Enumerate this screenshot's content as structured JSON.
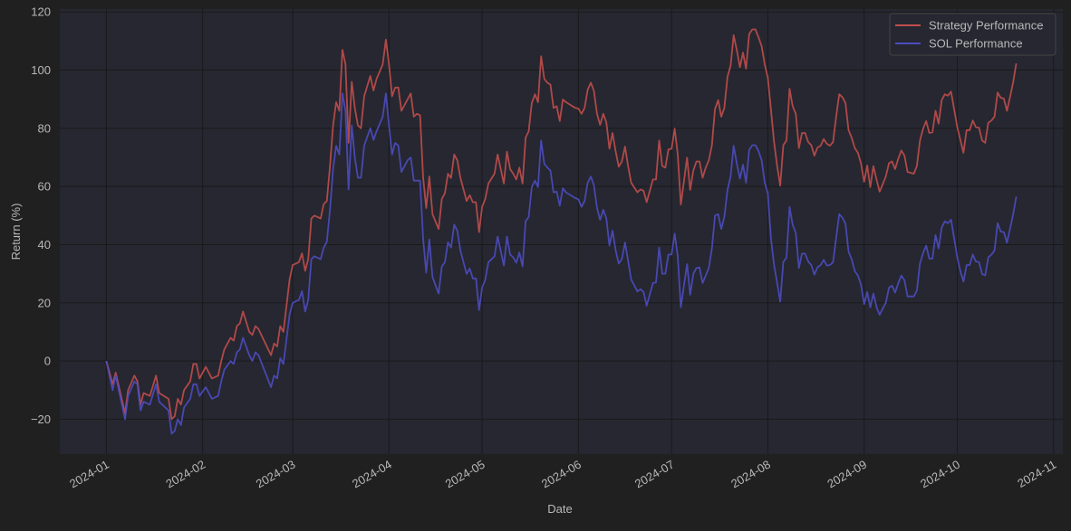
{
  "chart_data": {
    "type": "line",
    "title": "",
    "xlabel": "Date",
    "ylabel": "Return (%)",
    "xlim": [
      "2023-12-17",
      "2024-11-04"
    ],
    "ylim": [
      -32,
      121
    ],
    "grid": true,
    "legend_position": "top-right",
    "y_ticks": [
      -20,
      0,
      20,
      40,
      60,
      80,
      100,
      120
    ],
    "x_ticks": [
      "2024-01",
      "2024-02",
      "2024-03",
      "2024-04",
      "2024-05",
      "2024-06",
      "2024-07",
      "2024-08",
      "2024-09",
      "2024-10",
      "2024-11"
    ],
    "colors": {
      "background": "#202020",
      "plot_background": "#262730",
      "grid": "#1a1a1c"
    },
    "x": [
      "2024-01-01",
      "2024-01-03",
      "2024-01-04",
      "2024-01-07",
      "2024-01-08",
      "2024-01-10",
      "2024-01-11",
      "2024-01-12",
      "2024-01-13",
      "2024-01-15",
      "2024-01-17",
      "2024-01-18",
      "2024-01-21",
      "2024-01-22",
      "2024-01-23",
      "2024-01-24",
      "2024-01-25",
      "2024-01-26",
      "2024-01-28",
      "2024-01-29",
      "2024-01-30",
      "2024-01-31",
      "2024-02-02",
      "2024-02-04",
      "2024-02-06",
      "2024-02-07",
      "2024-02-08",
      "2024-02-10",
      "2024-02-11",
      "2024-02-12",
      "2024-02-13",
      "2024-02-14",
      "2024-02-16",
      "2024-02-17",
      "2024-02-18",
      "2024-02-19",
      "2024-02-23",
      "2024-02-24",
      "2024-02-25",
      "2024-02-26",
      "2024-02-27",
      "2024-02-29",
      "2024-03-01",
      "2024-03-03",
      "2024-03-04",
      "2024-03-05",
      "2024-03-06",
      "2024-03-07",
      "2024-03-08",
      "2024-03-10",
      "2024-03-11",
      "2024-03-12",
      "2024-03-13",
      "2024-03-14",
      "2024-03-15",
      "2024-03-16",
      "2024-03-17",
      "2024-03-18",
      "2024-03-19",
      "2024-03-20",
      "2024-03-21",
      "2024-03-22",
      "2024-03-23",
      "2024-03-24",
      "2024-03-26",
      "2024-03-27",
      "2024-03-28",
      "2024-03-30",
      "2024-03-31",
      "2024-04-01",
      "2024-04-02",
      "2024-04-03",
      "2024-04-04",
      "2024-04-05",
      "2024-04-07",
      "2024-04-08",
      "2024-04-09",
      "2024-04-10",
      "2024-04-11",
      "2024-04-12",
      "2024-04-13",
      "2024-04-14",
      "2024-04-15",
      "2024-04-17",
      "2024-04-18",
      "2024-04-19",
      "2024-04-20",
      "2024-04-21",
      "2024-04-22",
      "2024-04-23",
      "2024-04-24",
      "2024-04-26",
      "2024-04-27",
      "2024-04-28",
      "2024-04-29",
      "2024-04-30",
      "2024-05-01",
      "2024-05-02",
      "2024-05-03",
      "2024-05-05",
      "2024-05-06",
      "2024-05-08",
      "2024-05-09",
      "2024-05-10",
      "2024-05-11",
      "2024-05-12",
      "2024-05-13",
      "2024-05-14",
      "2024-05-15",
      "2024-05-16",
      "2024-05-17",
      "2024-05-18",
      "2024-05-19",
      "2024-05-20",
      "2024-05-21",
      "2024-05-22",
      "2024-05-23",
      "2024-05-24",
      "2024-05-25",
      "2024-05-26",
      "2024-05-27",
      "2024-05-28",
      "2024-05-31",
      "2024-06-01",
      "2024-06-02",
      "2024-06-03",
      "2024-06-04",
      "2024-06-05",
      "2024-06-06",
      "2024-06-07",
      "2024-06-08",
      "2024-06-09",
      "2024-06-10",
      "2024-06-11",
      "2024-06-12",
      "2024-06-13",
      "2024-06-14",
      "2024-06-15",
      "2024-06-16",
      "2024-06-17",
      "2024-06-18",
      "2024-06-20",
      "2024-06-21",
      "2024-06-22",
      "2024-06-23",
      "2024-06-25",
      "2024-06-26",
      "2024-06-27",
      "2024-06-28",
      "2024-06-29",
      "2024-06-30",
      "2024-07-01",
      "2024-07-02",
      "2024-07-03",
      "2024-07-04",
      "2024-07-06",
      "2024-07-07",
      "2024-07-08",
      "2024-07-09",
      "2024-07-10",
      "2024-07-11",
      "2024-07-12",
      "2024-07-13",
      "2024-07-14",
      "2024-07-15",
      "2024-07-16",
      "2024-07-17",
      "2024-07-18",
      "2024-07-19",
      "2024-07-20",
      "2024-07-21",
      "2024-07-22",
      "2024-07-23",
      "2024-07-24",
      "2024-07-25",
      "2024-07-26",
      "2024-07-27",
      "2024-07-28",
      "2024-07-29",
      "2024-07-30",
      "2024-07-31",
      "2024-08-01",
      "2024-08-02",
      "2024-08-03",
      "2024-08-04",
      "2024-08-05",
      "2024-08-06",
      "2024-08-07",
      "2024-08-08",
      "2024-08-09",
      "2024-08-10",
      "2024-08-11",
      "2024-08-12",
      "2024-08-13",
      "2024-08-14",
      "2024-08-15",
      "2024-08-16",
      "2024-08-17",
      "2024-08-18",
      "2024-08-19",
      "2024-08-20",
      "2024-08-21",
      "2024-08-22",
      "2024-08-23",
      "2024-08-24",
      "2024-08-25",
      "2024-08-26",
      "2024-08-27",
      "2024-08-28",
      "2024-08-29",
      "2024-08-30",
      "2024-08-31",
      "2024-09-01",
      "2024-09-02",
      "2024-09-03",
      "2024-09-04",
      "2024-09-05",
      "2024-09-06",
      "2024-09-07",
      "2024-09-08",
      "2024-09-09",
      "2024-09-10",
      "2024-09-11",
      "2024-09-12",
      "2024-09-13",
      "2024-09-14",
      "2024-09-15",
      "2024-09-17",
      "2024-09-18",
      "2024-09-19",
      "2024-09-20",
      "2024-09-21",
      "2024-09-22",
      "2024-09-23",
      "2024-09-24",
      "2024-09-25",
      "2024-09-26",
      "2024-09-27",
      "2024-09-28",
      "2024-09-29",
      "2024-09-30",
      "2024-10-01",
      "2024-10-02",
      "2024-10-03",
      "2024-10-04",
      "2024-10-05",
      "2024-10-06",
      "2024-10-07",
      "2024-10-08",
      "2024-10-09",
      "2024-10-10",
      "2024-10-11",
      "2024-10-12",
      "2024-10-13",
      "2024-10-14",
      "2024-10-15",
      "2024-10-16",
      "2024-10-17",
      "2024-10-18",
      "2024-10-19",
      "2024-10-20"
    ],
    "series": [
      {
        "name": "Strategy Performance",
        "color": "#c04e4c",
        "values": [
          0,
          -8,
          -4,
          -18,
          -10,
          -5,
          -7,
          -15,
          -11,
          -12,
          -5,
          -11,
          -13,
          -20,
          -19,
          -13,
          -15,
          -10,
          -7,
          -1,
          -1,
          -6,
          -2,
          -6,
          -5,
          0,
          4,
          8,
          7,
          12,
          13,
          17,
          10,
          9,
          12,
          11,
          2,
          6,
          5,
          12,
          10,
          28,
          33,
          34,
          37,
          31,
          35,
          49,
          50,
          49,
          54,
          55,
          67,
          81,
          89,
          86,
          107,
          102,
          75,
          96,
          87,
          81,
          80,
          91,
          98,
          93,
          97,
          102,
          110.5,
          102,
          91,
          94,
          94,
          86,
          90,
          92,
          84,
          85,
          84.5,
          63,
          52.6,
          63.4,
          50.5,
          45.4,
          55.7,
          57.7,
          64.4,
          62.9,
          71,
          69,
          63,
          55,
          57,
          54.6,
          54.6,
          44.3,
          53,
          55.7,
          61,
          64.4,
          71,
          61,
          72,
          66,
          64.4,
          62.4,
          66.5,
          61,
          76.8,
          79,
          88.7,
          91.7,
          89,
          104.8,
          97,
          95.7,
          95,
          87,
          87.6,
          82.5,
          89.9,
          89,
          87,
          86.8,
          85,
          87,
          93.3,
          95.7,
          92.8,
          85,
          81.2,
          85,
          82,
          73,
          78.4,
          72,
          66.8,
          68.6,
          73.7,
          67,
          61.3,
          58,
          59,
          58.5,
          54.6,
          62.4,
          62.4,
          75.8,
          67,
          66.5,
          72.7,
          73,
          79.9,
          71,
          53.8,
          69.9,
          58.8,
          65.5,
          68.6,
          68.6,
          63,
          66.5,
          69,
          74.2,
          86.6,
          89.7,
          84,
          87,
          97.7,
          101.5,
          112,
          107,
          101,
          106,
          100.5,
          112.4,
          114,
          114,
          111.3,
          108.2,
          102,
          97.4,
          86.6,
          75.3,
          67,
          60.3,
          74.2,
          75.8,
          93.6,
          87.6,
          85,
          73.2,
          78.4,
          78.4,
          75.3,
          74.2,
          70.6,
          73.4,
          74,
          76.3,
          74.7,
          74,
          75.3,
          84,
          91.7,
          90.7,
          88.7,
          79.4,
          76.8,
          73.2,
          71.6,
          68,
          61.6,
          67.2,
          59.8,
          67,
          62.4,
          58.2,
          60.8,
          63.4,
          68,
          68.6,
          66,
          69.6,
          72.4,
          70.6,
          65,
          64.4,
          67,
          75.8,
          79.9,
          82.5,
          78.4,
          78.6,
          86,
          81.6,
          89.7,
          91.7,
          91.2,
          92.6,
          86.6,
          80.4,
          76,
          71.6,
          79.4,
          79.4,
          82.7,
          80.4,
          80.2,
          75.8,
          75,
          81.9,
          82.7,
          84,
          92.3,
          90.5,
          90.2,
          86,
          90.7,
          95.9,
          102.3
        ]
      },
      {
        "name": "SOL Performance",
        "color": "#4c4cc0",
        "values": [
          0,
          -10,
          -5,
          -20,
          -12,
          -7,
          -8,
          -17,
          -14,
          -15,
          -8,
          -14,
          -17,
          -25,
          -24,
          -20,
          -22,
          -16,
          -13,
          -8,
          -8,
          -12,
          -9,
          -13,
          -12,
          -7,
          -3,
          0,
          -1,
          3,
          4,
          8,
          2,
          0,
          3,
          2,
          -9,
          -5,
          -6,
          1,
          -1,
          16,
          20,
          21,
          24,
          17,
          21,
          35,
          36,
          35,
          39,
          41,
          52,
          66,
          74,
          71,
          92,
          86,
          59,
          81,
          70,
          63,
          63,
          74,
          80,
          76,
          79,
          84,
          92,
          81,
          71,
          75,
          74,
          65,
          69,
          70,
          62,
          62,
          62,
          42,
          30.4,
          41.8,
          28.9,
          23.2,
          32.5,
          34,
          40.8,
          39,
          46.9,
          44.8,
          38,
          29.9,
          31.8,
          28.4,
          28.4,
          17.5,
          25.3,
          27.8,
          34,
          36,
          42.8,
          32.8,
          42.8,
          36.6,
          35.6,
          33.8,
          37.3,
          32.5,
          48,
          49.5,
          59.8,
          62,
          59.8,
          75.8,
          67.8,
          66.5,
          65.5,
          58,
          58.2,
          53.4,
          59.4,
          58,
          56,
          55.6,
          53,
          55,
          61.3,
          63.4,
          60.3,
          52.6,
          48.5,
          52,
          49,
          39.7,
          44.8,
          38,
          33.5,
          35,
          40.7,
          34.5,
          28,
          23.9,
          24.7,
          23.7,
          19,
          26.8,
          27,
          39,
          30,
          30,
          36.6,
          36.6,
          43.8,
          36,
          18.5,
          33.3,
          22.8,
          30,
          32,
          32.2,
          26.8,
          29.4,
          32,
          38.7,
          50,
          50.5,
          45.4,
          49.5,
          58.8,
          63.4,
          74,
          68,
          62.7,
          67.5,
          61.3,
          72.6,
          74.2,
          74.2,
          72.2,
          69,
          61.3,
          57.7,
          42.3,
          33,
          26.8,
          20.4,
          34,
          35.6,
          53,
          46.9,
          44,
          32,
          36.9,
          36.9,
          34.2,
          33,
          29.7,
          32.2,
          33,
          34.8,
          32.8,
          33,
          34,
          42.3,
          50.5,
          49.3,
          47.2,
          37.6,
          35,
          30.9,
          29.4,
          26.3,
          19.6,
          23.7,
          18.4,
          23.2,
          18.5,
          15.9,
          18,
          20,
          25.2,
          25.9,
          23.5,
          26.8,
          29.4,
          27.8,
          22.2,
          22.2,
          24.2,
          33.5,
          37.1,
          39.7,
          35.2,
          35.2,
          43.3,
          38.7,
          45.9,
          48,
          47.4,
          48.6,
          42.3,
          35.6,
          30.9,
          27.3,
          33,
          33,
          36.6,
          34.2,
          34,
          29.9,
          29.4,
          35.6,
          36.6,
          38,
          47.4,
          44.5,
          44.3,
          40.7,
          45.4,
          50.5,
          56.5
        ]
      }
    ]
  }
}
